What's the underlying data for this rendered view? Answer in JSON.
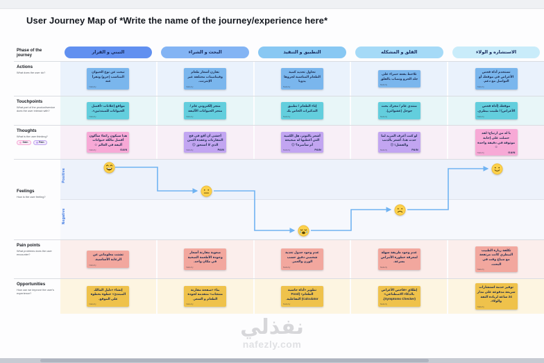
{
  "header": {
    "title_prefix": "User Journey Map of",
    "title_emphasis": "*Write the name of the journey/experience here*"
  },
  "row_labels": {
    "phase": {
      "title": "Phase of the journey"
    },
    "actions": {
      "title": "Actions",
      "subtitle": "What does the user do?"
    },
    "touchpoints": {
      "title": "Touchpoints",
      "subtitle": "What part of the product/service does the user interact with?"
    },
    "thoughts": {
      "title": "Thoughts",
      "subtitle": "What is the user thinking?"
    },
    "feelings": {
      "title": "Feelings",
      "subtitle": "How is the user feeling?",
      "positive": "Positive",
      "negative": "Negative"
    },
    "pain_points": {
      "title": "Pain points",
      "subtitle": "What problems does the user encounter?"
    },
    "opportunities": {
      "title": "Opportunities",
      "subtitle": "How can we improve the user's experience?"
    }
  },
  "thought_legend": [
    {
      "label": "Gain",
      "color": "#f7a9d6"
    },
    {
      "label": "Pain",
      "color": "#c2a5f1"
    }
  ],
  "phases": [
    {
      "label": "التبني و القرار",
      "color": "#6190f0"
    },
    {
      "label": "البحث و الشراء",
      "color": "#83b4f4"
    },
    {
      "label": "التطبيق و التنفيذ",
      "color": "#88c8f3"
    },
    {
      "label": "القلق و المشكله",
      "color": "#a5daf7"
    },
    {
      "label": "الاستشاره و الولاء",
      "color": "#c9ecfa"
    }
  ],
  "author_tag": "Nafezly",
  "notes": {
    "actions": [
      "تبحث عن نوع الحيوان المناسب (جرو) وتقرأ عنه",
      "تقارن أسعار طعام وفيتامينات مختلفة عبر الإنترنت.",
      "تحاول تحديد كمية الطعام المناسبة لجروها يدويا",
      "تلاحظ بقعة حمراء على جلد الجرو وتصاب بالقلق",
      "تستخدم أداة فحص الأعراض في موقعك أو التواصل مع دعم."
    ],
    "touchpoints": [
      "مواقع إعلانات «أفضل الحيوانات للمبتدئين».",
      "متجر إلكتروني عام / متجر الحيوانات الأليفة",
      "إناء الطعام / تطبيق التذكيرات الخاص بك",
      "منتدى عام / محرك بحث جوجل (عشوائي).",
      "موقعك (أداة فحص الأعراض) / طبيب بيطري."
    ],
    "thoughts": [
      {
        "text": "هذا سيكون رائعا! سأكون أفضل مالكة حيوانات أليفة في العالم ☺",
        "type": "gain",
        "tag": "GAIN"
      },
      {
        "text": "أخشى أن أقع في فخ المقارنات وعقدة الثمن الذي لا أستحق ☹",
        "type": "pain",
        "tag": "PAIN"
      },
      {
        "text": "أشعر بالتوتر، هل الكمية التي أعطيها له صحيحة أم سأضره؟ ☹",
        "type": "pain",
        "tag": "PAIN"
      },
      {
        "text": "لو كنت أعرف المزيد لما حدث هذا. أشعر بالذنب والفشل! ☹",
        "type": "pain",
        "tag": "PAIN"
      },
      {
        "text": "يا له من ارتياح! لقد حصلت على إجابة موثوقة في دقيقة واحدة ☺",
        "type": "gain",
        "tag": "GAIN"
      }
    ],
    "pain_points": [
      "تشتت معلوماتي عن الرعاية الأساسية.",
      "صعوبة مقارنة أسعار وجودة الأطعمة الصحية في مكان واحد.",
      "عدم وجود جدول تغذية شخصي دقيق حسب الوزن والعمر.",
      "عدم وجود طريقة سهلة لمعرفة خطورة الأمراض بسرعة.",
      "تكلفة زيارة الطبيب البيطري كانت مرتفعة مع ضياع وقت في البحث."
    ],
    "opportunities": [
      "إنشاء «دليل المالك المبتدئ» خطوة بخطوة على الموقع.",
      "بناء «صفحة مقارنة منتجات» متقدمة لجودة الطعام و السعر.",
      "تطوير «أداة حاسبة الطعام» (Food Calculator) التفاعلية.",
      "إطلاق «فاحص الأعراض بالذكاء الاصطناعي» (Symptoms Checker).",
      "توفير خدمة استشارات سريعة مدفوعة على مدار 24 ساعة لزيادة الثقة والولاء."
    ]
  },
  "feelings_curve": {
    "emojis": [
      "grinning",
      "neutral",
      "crying",
      "sad",
      "smiling"
    ]
  },
  "watermark": {
    "logo": "نفذلي",
    "domain": "nafezly.com"
  }
}
